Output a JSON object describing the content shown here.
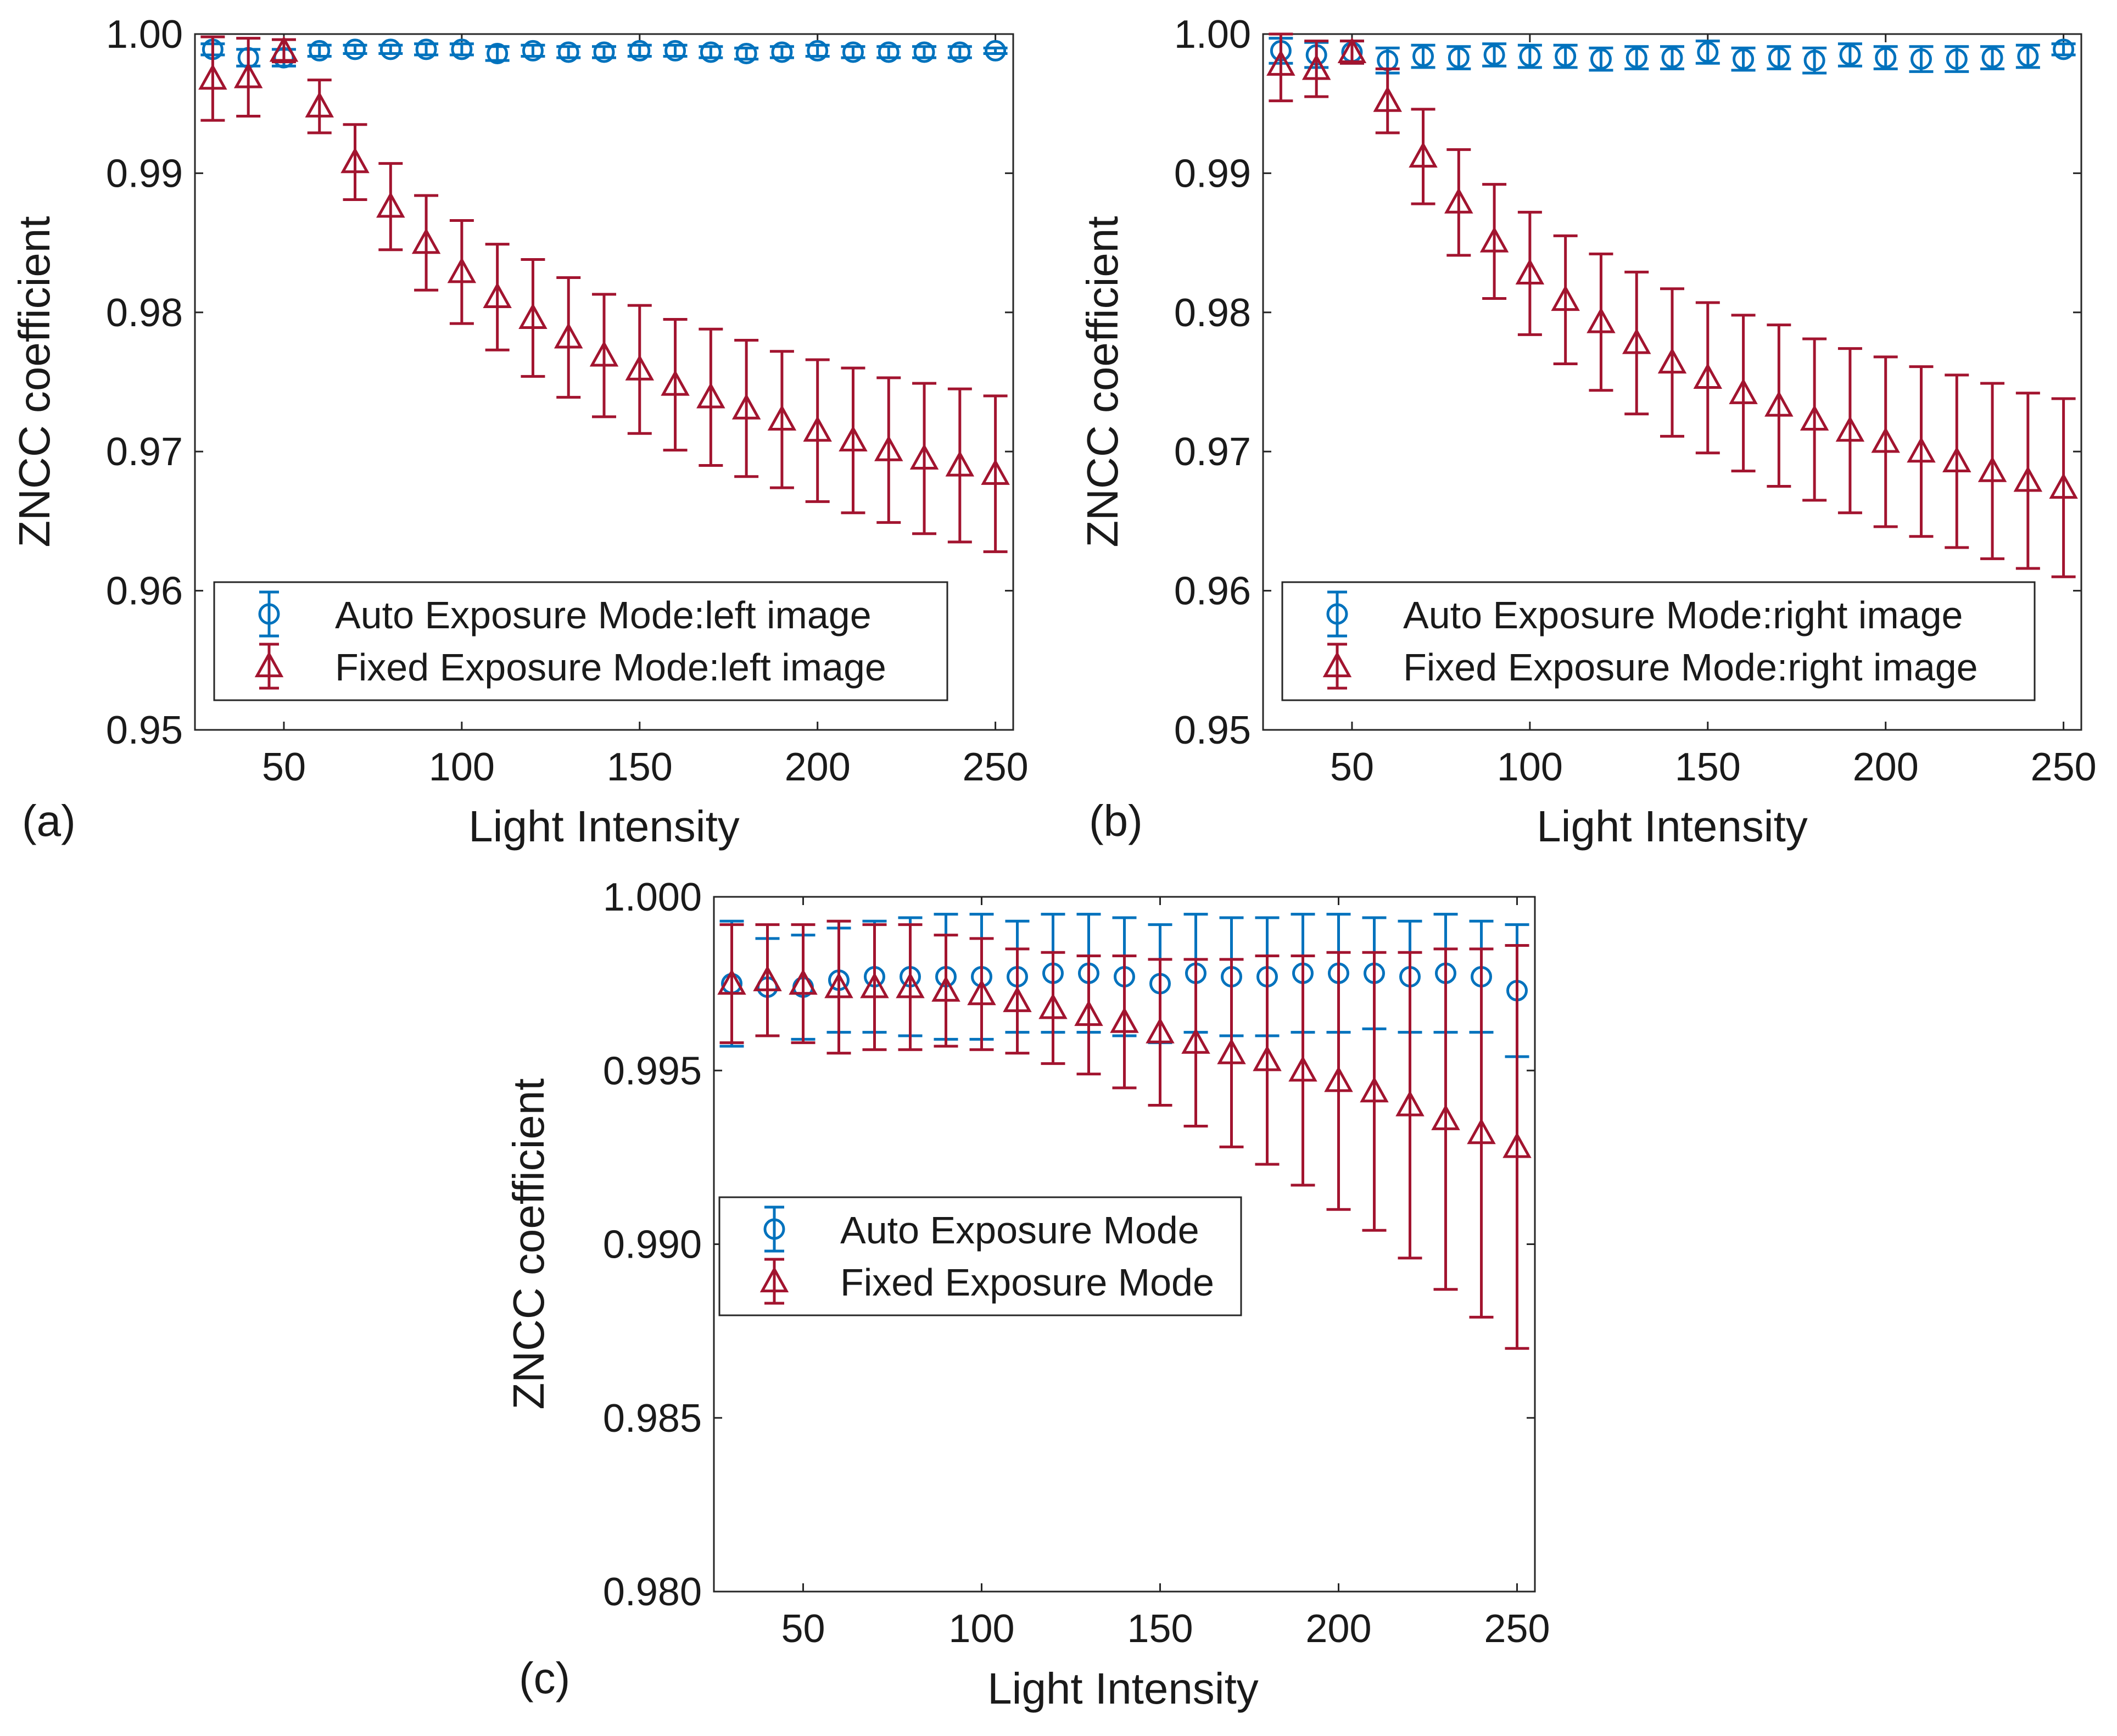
{
  "figure": {
    "colors": {
      "auto": "#0072BD",
      "fixed": "#A2142F",
      "axis": "#262626",
      "text": "#1a1a1a"
    }
  },
  "chart_data": [
    {
      "type": "scatter",
      "panel_label": "(a)",
      "xlabel": "Light Intensity",
      "ylabel": "ZNCC coefficient",
      "xlim": [
        25,
        255
      ],
      "ylim": [
        0.95,
        1.0
      ],
      "xticks": [
        50,
        100,
        150,
        200,
        250
      ],
      "yticks": [
        0.95,
        0.96,
        0.97,
        0.98,
        0.99,
        1.0
      ],
      "ytick_labels": [
        "0.95",
        "0.96",
        "0.97",
        "0.98",
        "0.99",
        "1.00"
      ],
      "legend_position": "bottom-left",
      "x": [
        30,
        40,
        50,
        60,
        70,
        80,
        90,
        100,
        110,
        120,
        130,
        140,
        150,
        160,
        170,
        180,
        190,
        200,
        210,
        220,
        230,
        240,
        250
      ],
      "series": [
        {
          "name": "Auto Exposure Mode:left image",
          "marker": "circle",
          "color": "#0072BD",
          "values": [
            0.9989,
            0.9983,
            0.9983,
            0.9988,
            0.9989,
            0.9989,
            0.9989,
            0.9989,
            0.9986,
            0.9988,
            0.9987,
            0.9987,
            0.9988,
            0.9988,
            0.9987,
            0.9986,
            0.9987,
            0.9988,
            0.9987,
            0.9987,
            0.9987,
            0.9987,
            0.9988
          ],
          "errors": [
            0.0004,
            0.0006,
            0.0006,
            0.0004,
            0.0003,
            0.0003,
            0.0004,
            0.0004,
            0.0005,
            0.0004,
            0.0004,
            0.0004,
            0.0004,
            0.0004,
            0.0004,
            0.0004,
            0.0004,
            0.0004,
            0.0004,
            0.0004,
            0.0004,
            0.0004,
            0.0002
          ]
        },
        {
          "name": "Fixed Exposure Mode:left image",
          "marker": "triangle",
          "color": "#A2142F",
          "values": [
            0.9968,
            0.9969,
            0.9988,
            0.9948,
            0.9908,
            0.9876,
            0.985,
            0.9829,
            0.9811,
            0.9796,
            0.9782,
            0.9769,
            0.9759,
            0.9748,
            0.9739,
            0.9731,
            0.9723,
            0.9715,
            0.9708,
            0.9701,
            0.9695,
            0.969,
            0.9684
          ],
          "errors": [
            0.003,
            0.0028,
            0.0008,
            0.0019,
            0.0027,
            0.0031,
            0.0034,
            0.0037,
            0.0038,
            0.0042,
            0.0043,
            0.0044,
            0.0046,
            0.0047,
            0.0049,
            0.0049,
            0.0049,
            0.0051,
            0.0052,
            0.0052,
            0.0054,
            0.0055,
            0.0056
          ]
        }
      ]
    },
    {
      "type": "scatter",
      "panel_label": "(b)",
      "xlabel": "Light Intensity",
      "ylabel": "ZNCC coefficient",
      "xlim": [
        25,
        255
      ],
      "ylim": [
        0.95,
        1.0
      ],
      "xticks": [
        50,
        100,
        150,
        200,
        250
      ],
      "yticks": [
        0.95,
        0.96,
        0.97,
        0.98,
        0.99,
        1.0
      ],
      "ytick_labels": [
        "0.95",
        "0.96",
        "0.97",
        "0.98",
        "0.99",
        "1.00"
      ],
      "legend_position": "bottom-left",
      "x": [
        30,
        40,
        50,
        60,
        70,
        80,
        90,
        100,
        110,
        120,
        130,
        140,
        150,
        160,
        170,
        180,
        190,
        200,
        210,
        220,
        230,
        240,
        250
      ],
      "series": [
        {
          "name": "Auto Exposure Mode:right image",
          "marker": "circle",
          "color": "#0072BD",
          "values": [
            0.9988,
            0.9985,
            0.9987,
            0.9981,
            0.9984,
            0.9983,
            0.9985,
            0.9984,
            0.9984,
            0.9982,
            0.9983,
            0.9983,
            0.9987,
            0.9982,
            0.9983,
            0.9981,
            0.9985,
            0.9983,
            0.9982,
            0.9982,
            0.9983,
            0.9984,
            0.9989
          ],
          "errors": [
            0.0009,
            0.0009,
            0.0008,
            0.0009,
            0.0008,
            0.0008,
            0.0008,
            0.0008,
            0.0008,
            0.0008,
            0.0008,
            0.0008,
            0.0008,
            0.0008,
            0.0008,
            0.0009,
            0.0008,
            0.0008,
            0.0009,
            0.0009,
            0.0008,
            0.0008,
            0.0004
          ]
        },
        {
          "name": "Fixed Exposure Mode:right image",
          "marker": "triangle",
          "color": "#A2142F",
          "values": [
            0.9978,
            0.9975,
            0.9987,
            0.9952,
            0.9912,
            0.9879,
            0.9851,
            0.9828,
            0.9809,
            0.9793,
            0.9778,
            0.9764,
            0.9753,
            0.9742,
            0.9733,
            0.9723,
            0.9715,
            0.9707,
            0.97,
            0.9693,
            0.9686,
            0.9679,
            0.9674
          ],
          "errors": [
            0.0026,
            0.002,
            0.0008,
            0.0023,
            0.0034,
            0.0038,
            0.0041,
            0.0044,
            0.0046,
            0.0049,
            0.0051,
            0.0053,
            0.0054,
            0.0056,
            0.0058,
            0.0058,
            0.0059,
            0.0061,
            0.0061,
            0.0062,
            0.0063,
            0.0063,
            0.0064
          ]
        }
      ]
    },
    {
      "type": "scatter",
      "panel_label": "(c)",
      "xlabel": "Light Intensity",
      "ylabel": "ZNCC coefficient",
      "xlim": [
        25,
        255
      ],
      "ylim": [
        0.98,
        1.0
      ],
      "xticks": [
        50,
        100,
        150,
        200,
        250
      ],
      "yticks": [
        0.98,
        0.985,
        0.99,
        0.995,
        1.0
      ],
      "ytick_labels": [
        "0.980",
        "0.985",
        "0.990",
        "0.995",
        "1.000"
      ],
      "legend_position": "middle-left",
      "x": [
        30,
        40,
        50,
        60,
        70,
        80,
        90,
        100,
        110,
        120,
        130,
        140,
        150,
        160,
        170,
        180,
        190,
        200,
        210,
        220,
        230,
        240,
        250
      ],
      "series": [
        {
          "name": "Auto Exposure Mode",
          "marker": "circle",
          "color": "#0072BD",
          "values": [
            0.9975,
            0.9974,
            0.9974,
            0.9976,
            0.9977,
            0.9977,
            0.9977,
            0.9977,
            0.9977,
            0.9978,
            0.9978,
            0.9977,
            0.9975,
            0.9978,
            0.9977,
            0.9977,
            0.9978,
            0.9978,
            0.9978,
            0.9977,
            0.9978,
            0.9977,
            0.9973
          ],
          "errors": [
            0.0018,
            0.0014,
            0.0015,
            0.0015,
            0.0016,
            0.0017,
            0.0018,
            0.0018,
            0.0016,
            0.0017,
            0.0017,
            0.0017,
            0.0017,
            0.0017,
            0.0017,
            0.0017,
            0.0017,
            0.0017,
            0.0016,
            0.0016,
            0.0017,
            0.0016,
            0.0019
          ]
        },
        {
          "name": "Fixed Exposure Mode",
          "marker": "triangle",
          "color": "#A2142F",
          "values": [
            0.9975,
            0.9976,
            0.9975,
            0.9974,
            0.9974,
            0.9974,
            0.9973,
            0.9972,
            0.997,
            0.9968,
            0.9966,
            0.9964,
            0.9961,
            0.9958,
            0.9955,
            0.9953,
            0.995,
            0.9947,
            0.9944,
            0.994,
            0.9936,
            0.9932,
            0.9928
          ],
          "errors": [
            0.0017,
            0.0016,
            0.0017,
            0.0019,
            0.0018,
            0.0018,
            0.0016,
            0.0016,
            0.0015,
            0.0016,
            0.0017,
            0.0019,
            0.0021,
            0.0024,
            0.0027,
            0.003,
            0.0033,
            0.0037,
            0.004,
            0.0044,
            0.0049,
            0.0053,
            0.0058
          ]
        }
      ]
    }
  ]
}
